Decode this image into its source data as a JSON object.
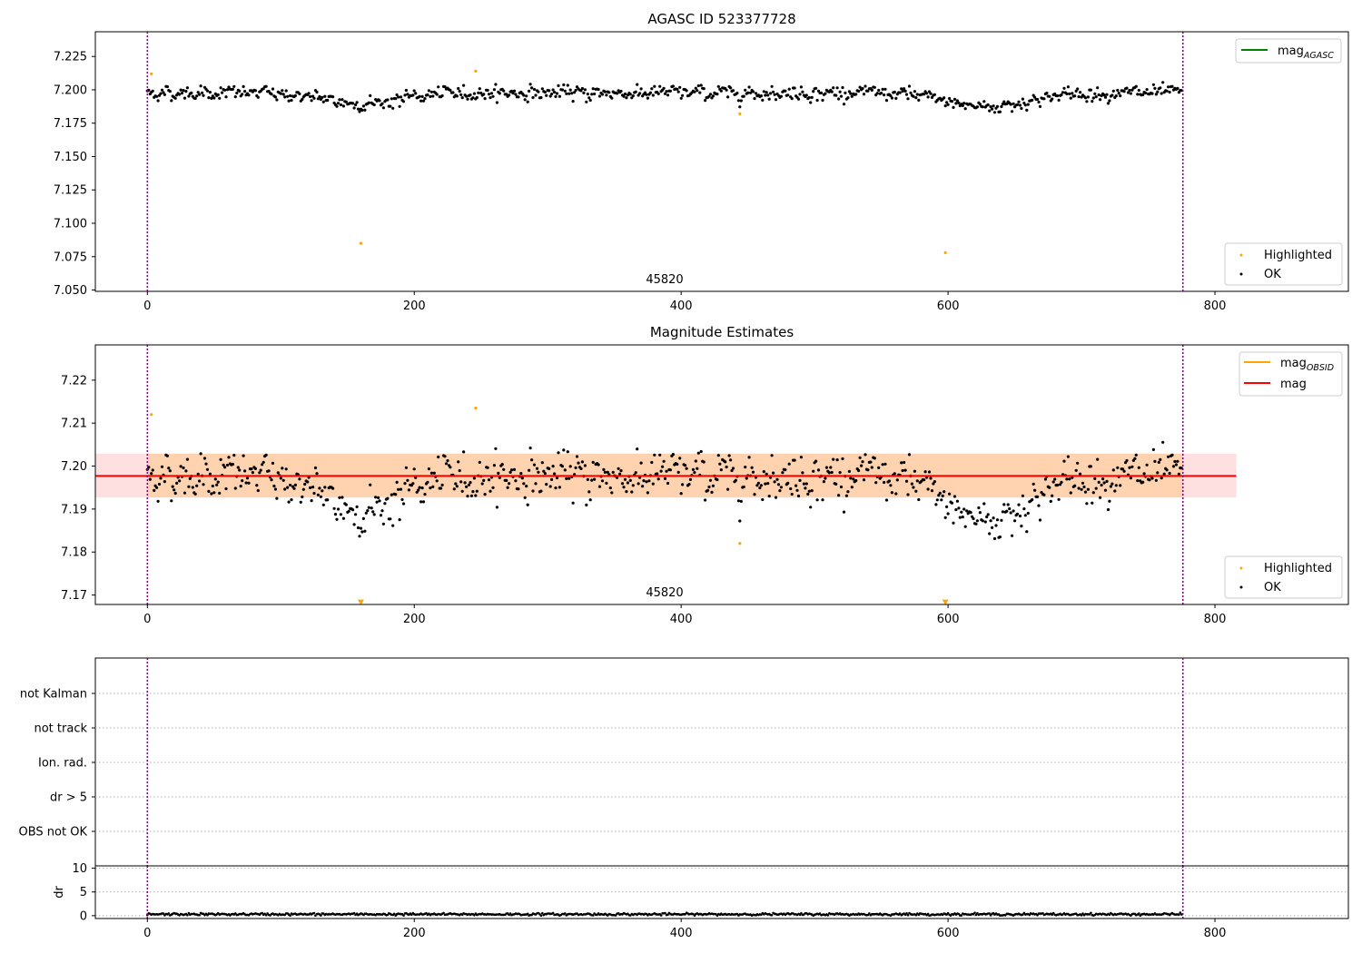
{
  "chart_data": [
    {
      "type": "scatter",
      "title": "AGASC ID 523377728",
      "xlim": [
        -39,
        900
      ],
      "ylim": [
        7.049,
        7.2435
      ],
      "x_ticks": [
        0,
        200,
        400,
        600,
        800
      ],
      "y_ticks": [
        7.05,
        7.075,
        7.1,
        7.125,
        7.15,
        7.175,
        7.2,
        7.225
      ],
      "y_tick_labels": [
        "7.050",
        "7.075",
        "7.100",
        "7.125",
        "7.150",
        "7.175",
        "7.200",
        "7.225"
      ],
      "obsid_label": "45820",
      "obsid_label_x": 388,
      "obsid_boundaries": [
        0,
        776
      ],
      "highlighted": {
        "x": [
          3,
          160,
          246,
          444,
          598
        ],
        "y": [
          7.212,
          7.085,
          7.214,
          7.182,
          7.078
        ]
      },
      "legend_top": [
        {
          "label": "mag",
          "subscript": "AGASC",
          "color": "#008000"
        }
      ],
      "legend_bottom": [
        {
          "label": "Highlighted",
          "color": "#ffa500"
        },
        {
          "label": "OK",
          "color": "#000000"
        }
      ],
      "series": [
        {
          "name": "OK",
          "color": "#000000",
          "n_points": 776,
          "mean": 7.1977,
          "std": 0.0045,
          "dip_near": [
            160,
            300,
            620,
            640
          ],
          "dip_depth": [
            0.008,
            0.0,
            0.006,
            0.005
          ]
        }
      ]
    },
    {
      "type": "scatter",
      "title": "Magnitude Estimates",
      "xlim": [
        -39,
        900
      ],
      "ylim": [
        7.1678,
        7.2282
      ],
      "x_ticks": [
        0,
        200,
        400,
        600,
        800
      ],
      "y_ticks": [
        7.17,
        7.18,
        7.19,
        7.2,
        7.21,
        7.22
      ],
      "y_tick_labels": [
        "7.17",
        "7.18",
        "7.19",
        "7.20",
        "7.21",
        "7.22"
      ],
      "obsid_label": "45820",
      "obsid_label_x": 388,
      "obsid_boundaries": [
        0,
        776
      ],
      "mag_line": {
        "y": 7.1977,
        "band_low": 7.1927,
        "band_high": 7.2029,
        "x_extent": [
          -39,
          816
        ],
        "color": "#ff0000"
      },
      "obsid_band": {
        "y": 7.1977,
        "band_low": 7.1927,
        "band_high": 7.2029,
        "x_extent": [
          0,
          776
        ],
        "color": "#ffa500"
      },
      "highlighted": {
        "x": [
          3,
          246,
          444
        ],
        "y": [
          7.212,
          7.2135,
          7.182
        ]
      },
      "out_of_range_markers": {
        "x": [
          160,
          598
        ],
        "y": 7.1683
      },
      "legend_top": [
        {
          "label": "mag",
          "subscript": "OBSID",
          "color": "#ffa500"
        },
        {
          "label": "mag",
          "subscript": "",
          "color": "#ff0000"
        }
      ],
      "legend_bottom": [
        {
          "label": "Highlighted",
          "color": "#ffa500"
        },
        {
          "label": "OK",
          "color": "#000000"
        }
      ]
    },
    {
      "type": "scatter",
      "title": "",
      "xlim": [
        -39,
        900
      ],
      "categories": [
        "not Kalman",
        "not track",
        "Ion. rad.",
        "dr > 5",
        "OBS not OK"
      ],
      "obsid_boundaries": [
        0,
        776
      ],
      "flags": []
    },
    {
      "type": "scatter",
      "title": "",
      "ylabel": "dr",
      "xlim": [
        -39,
        900
      ],
      "ylim": [
        -0.6,
        10.5
      ],
      "x_ticks": [
        0,
        200,
        400,
        600,
        800
      ],
      "y_ticks": [
        0,
        5,
        10
      ],
      "y_tick_labels": [
        "0",
        "5",
        "10"
      ],
      "obsid_boundaries": [
        0,
        776
      ],
      "series": [
        {
          "name": "dr",
          "color": "#000000",
          "n_points": 776,
          "mean": 0.3,
          "std": 0.12
        }
      ]
    }
  ]
}
